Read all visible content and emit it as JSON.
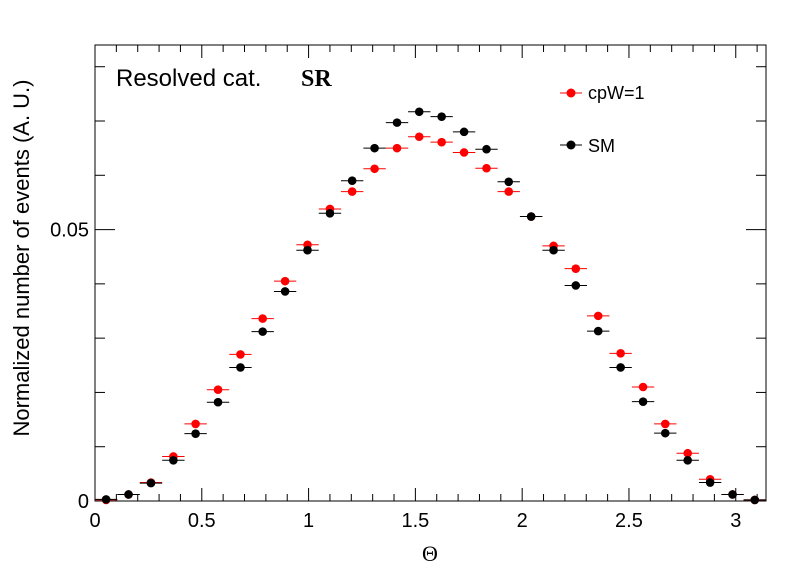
{
  "chart_data": {
    "type": "scatter",
    "annotation": "Resolved cat.",
    "annotation_bold": "SR",
    "xlabel": "Θ",
    "ylabel": "Normalized number of events (A. U.)",
    "xlim": [
      0,
      3.1416
    ],
    "ylim": [
      0,
      0.084
    ],
    "x_ticks": [
      "0",
      "0.5",
      "1",
      "1.5",
      "2",
      "2.5",
      "3"
    ],
    "x_tick_values": [
      0,
      0.5,
      1,
      1.5,
      2,
      2.5,
      3
    ],
    "y_ticks": [
      "0",
      "0.05"
    ],
    "y_tick_values": [
      0,
      0.05
    ],
    "grid": false,
    "legend_position": "top-right",
    "bin_half_width": 0.0524,
    "x": [
      0.052,
      0.157,
      0.262,
      0.367,
      0.471,
      0.576,
      0.681,
      0.785,
      0.89,
      0.995,
      1.1,
      1.204,
      1.309,
      1.414,
      1.518,
      1.623,
      1.728,
      1.833,
      1.937,
      2.042,
      2.147,
      2.251,
      2.356,
      2.461,
      2.566,
      2.67,
      2.775,
      2.88,
      2.985,
      3.089
    ],
    "series": [
      {
        "name": "cpW=1",
        "color": "#ff0000",
        "values": [
          0.0002,
          0.0012,
          0.0034,
          0.0082,
          0.0142,
          0.0205,
          0.027,
          0.0336,
          0.0405,
          0.0472,
          0.0538,
          0.057,
          0.0612,
          0.065,
          0.0671,
          0.0661,
          0.0642,
          0.0613,
          0.057,
          0.0524,
          0.047,
          0.0428,
          0.0341,
          0.0272,
          0.021,
          0.0142,
          0.0088,
          0.004,
          0.0012,
          0.0002
        ]
      },
      {
        "name": "SM",
        "color": "#000000",
        "values": [
          0.0003,
          0.0012,
          0.0033,
          0.0075,
          0.0124,
          0.0182,
          0.0246,
          0.0312,
          0.0386,
          0.0462,
          0.053,
          0.059,
          0.065,
          0.0697,
          0.0717,
          0.0708,
          0.068,
          0.0648,
          0.0588,
          0.0524,
          0.0462,
          0.0397,
          0.0313,
          0.0246,
          0.0183,
          0.0125,
          0.0075,
          0.0034,
          0.0012,
          0.0002
        ]
      }
    ]
  }
}
